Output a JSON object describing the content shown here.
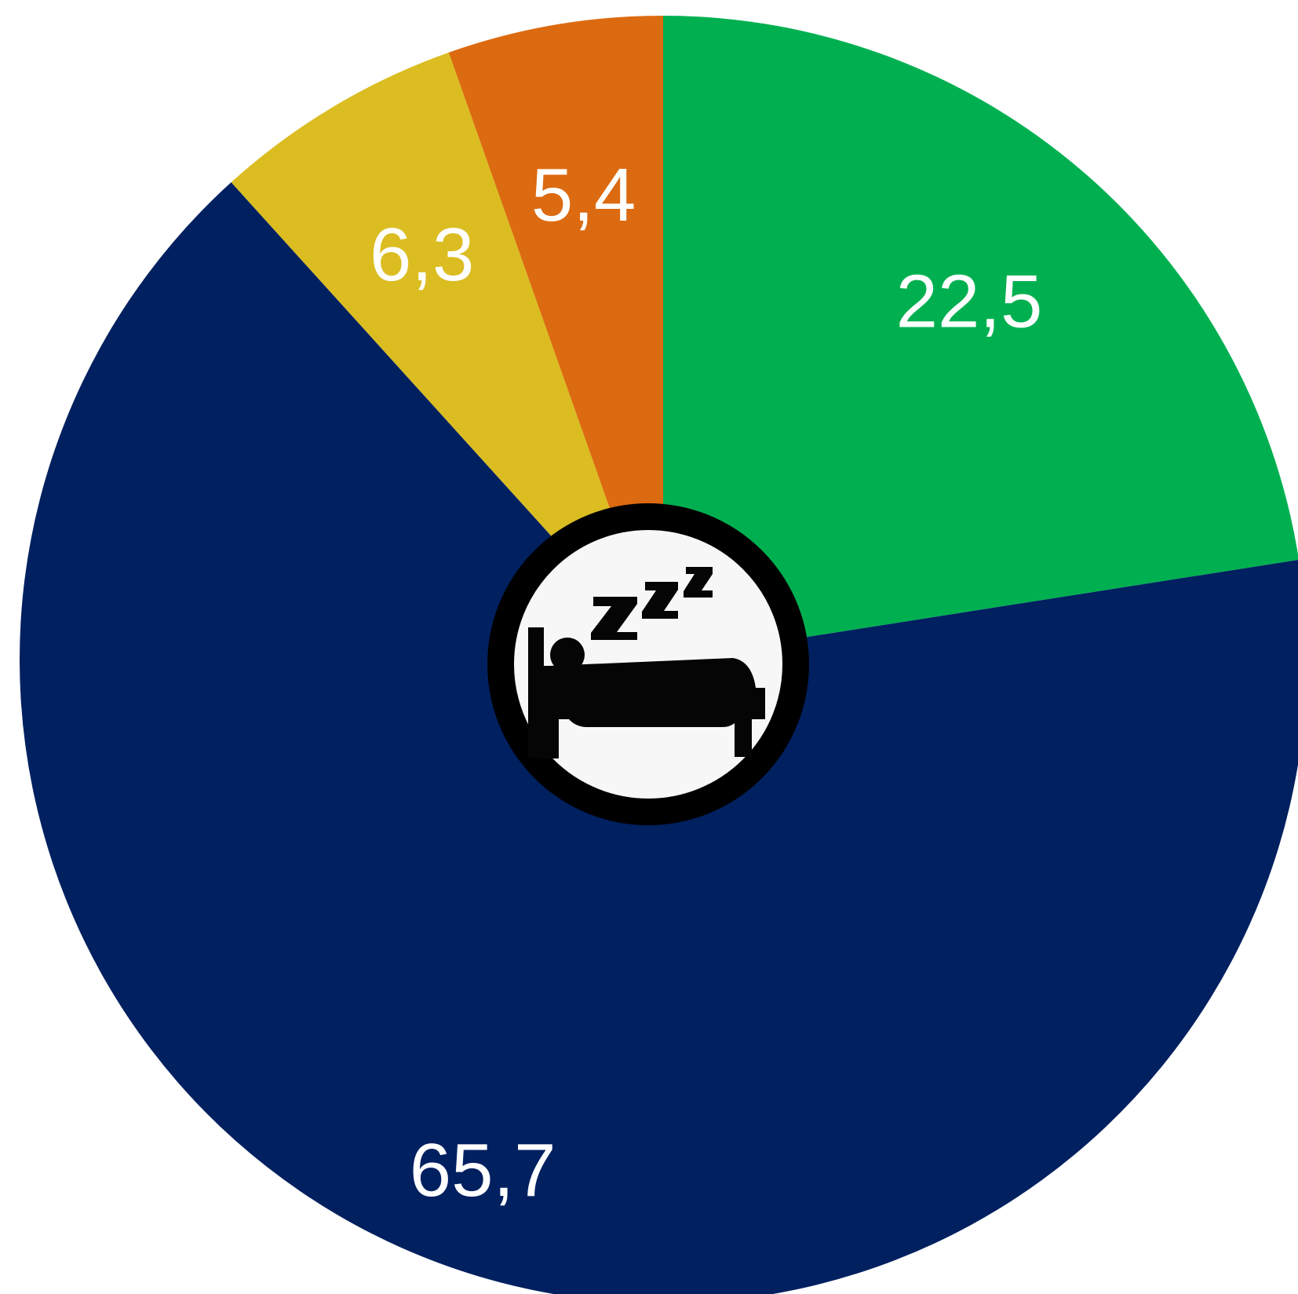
{
  "chart_data": {
    "type": "pie",
    "title": "",
    "start": "12 o'clock",
    "direction": "clockwise",
    "slices": [
      {
        "label": "22,5",
        "value": 22.5,
        "color": "#00B050"
      },
      {
        "label": "65,7",
        "value": 65.7,
        "color": "#002060"
      },
      {
        "label": "6,3",
        "value": 6.3,
        "color": "#DBBD22"
      },
      {
        "label": "5,4",
        "value": 5.4,
        "color": "#DC6A10"
      }
    ],
    "label_color": "#FFFFFF",
    "center_icon": "sleeping-person-in-bed-icon"
  }
}
